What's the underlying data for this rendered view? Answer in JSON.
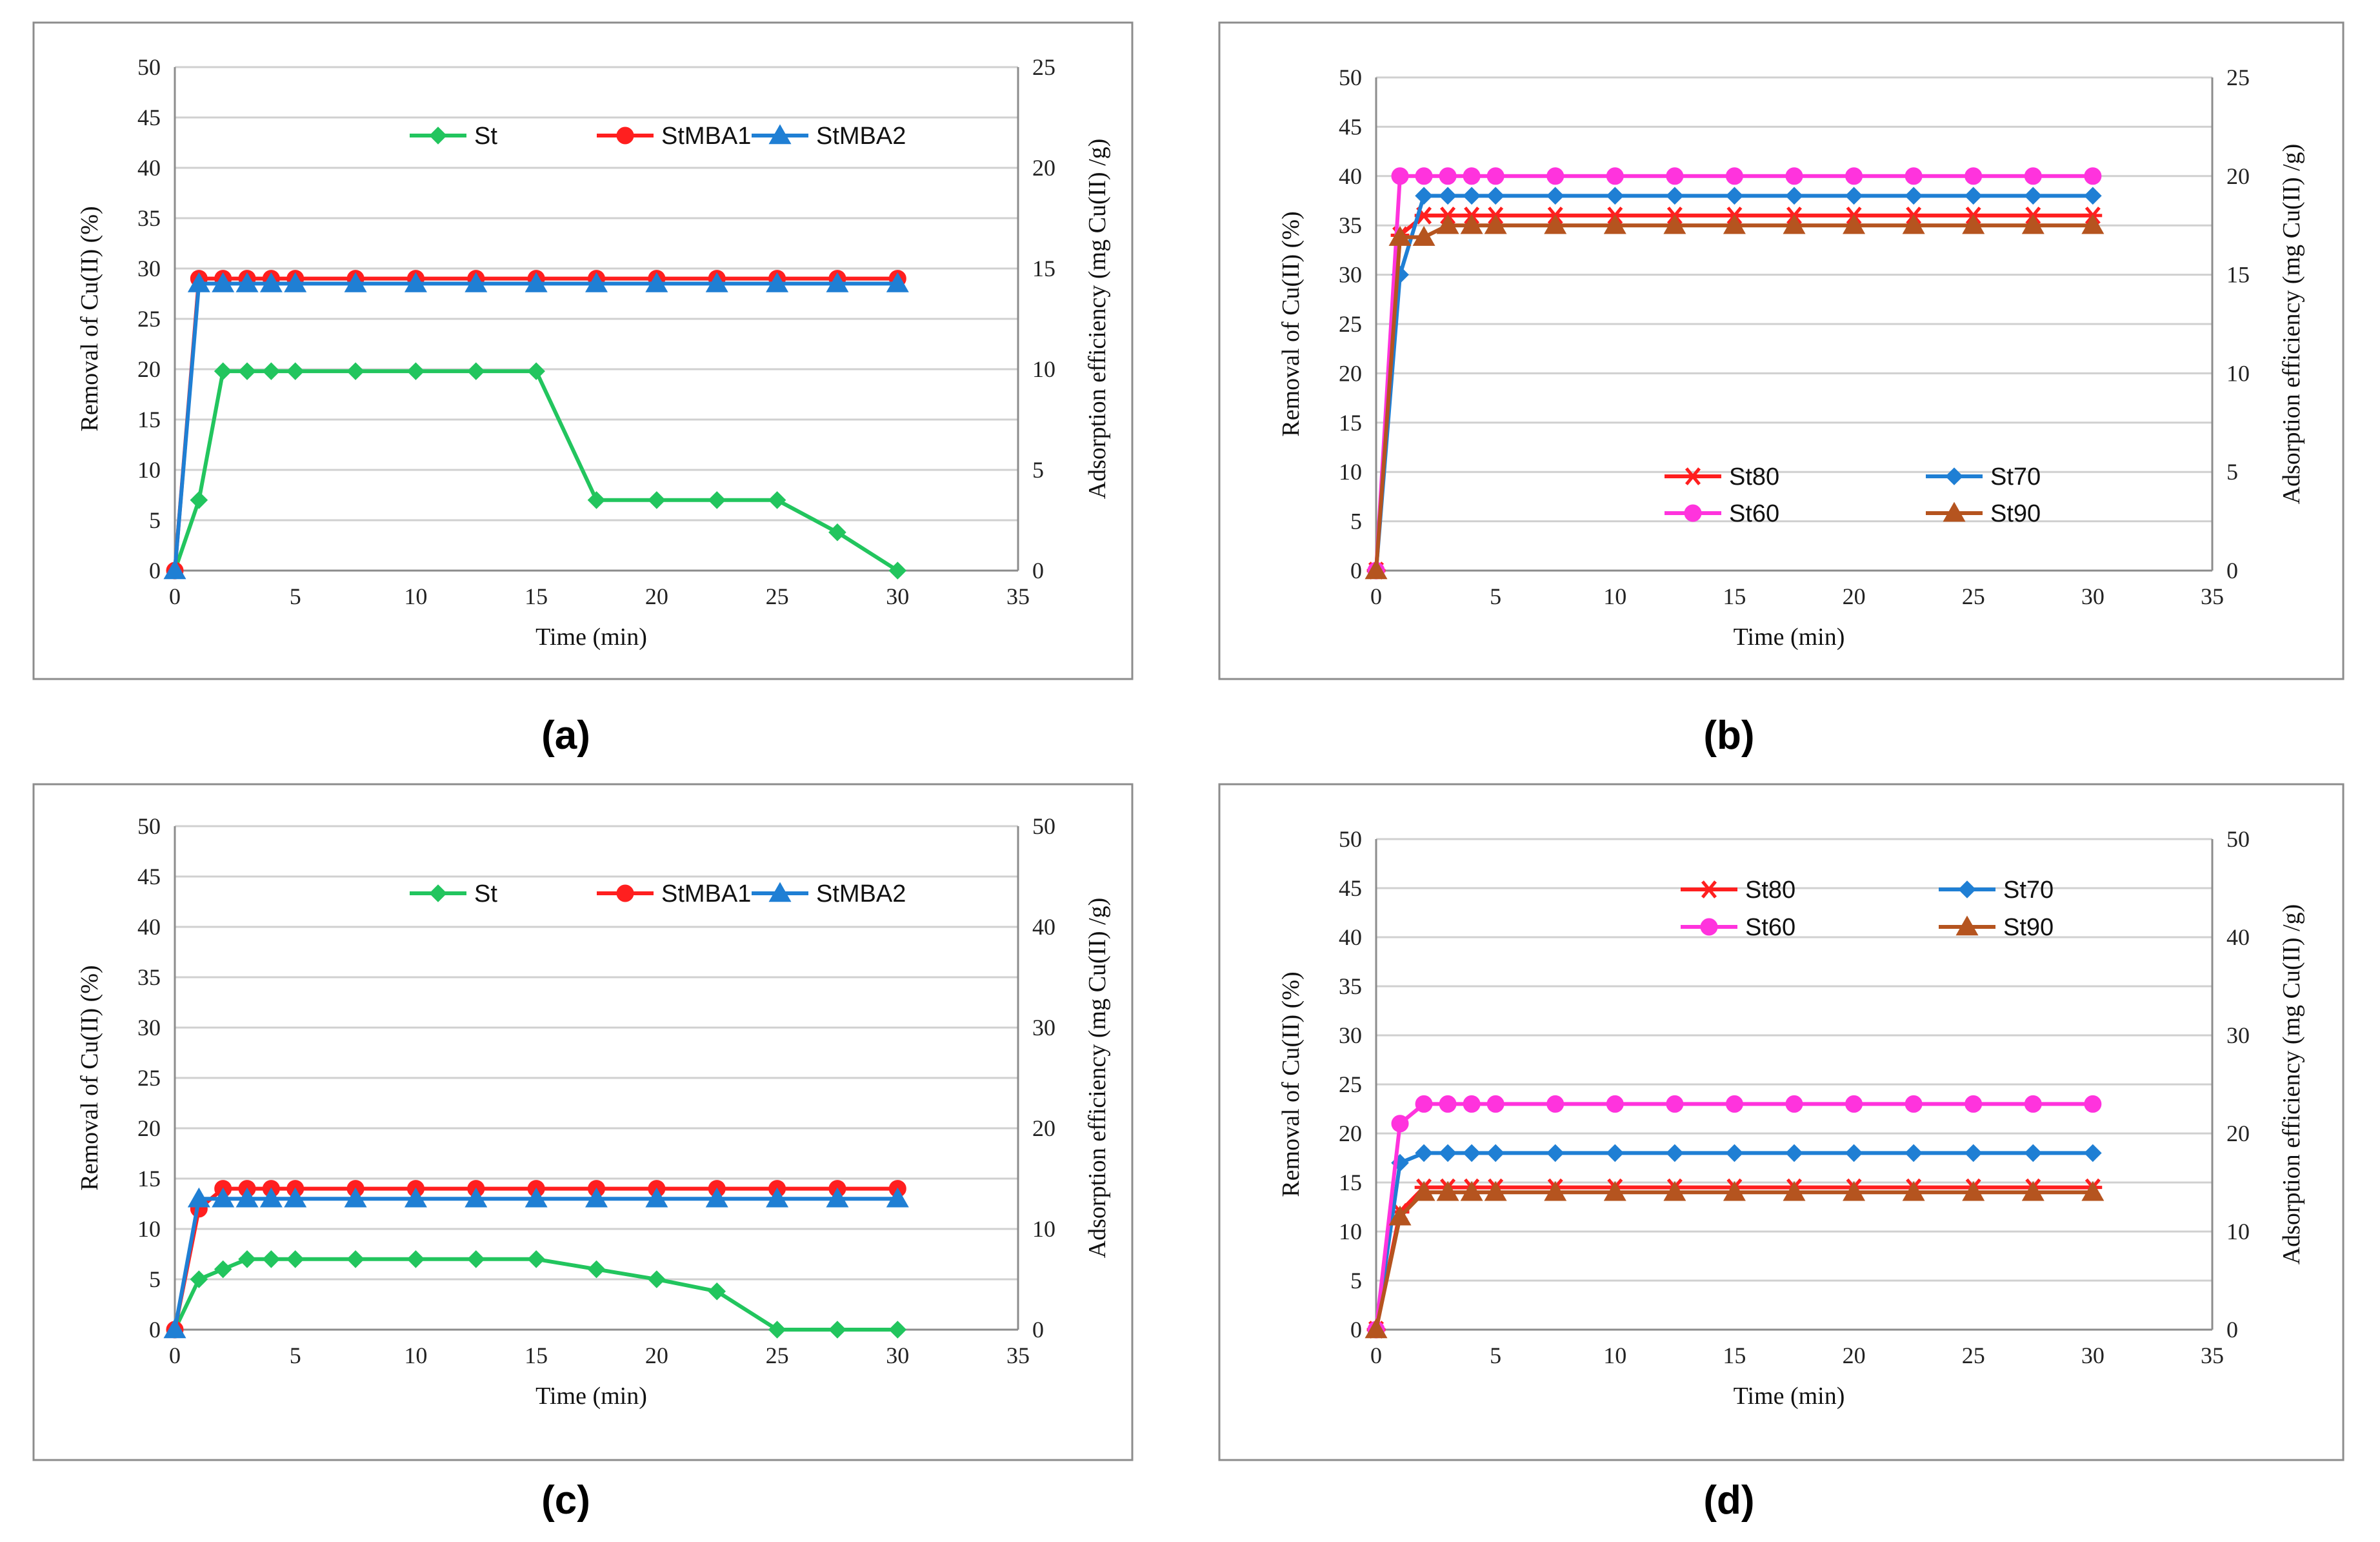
{
  "chart_data": [
    {
      "type": "line",
      "panel": "(a)",
      "xlabel": "Time (min)",
      "ylabel": "Removal of Cu(II) (%)",
      "y2label": "Adsorption efficiency  (mg Cu(II) /g)",
      "xlim": [
        0,
        35
      ],
      "ylim": [
        0,
        50
      ],
      "y2lim": [
        0,
        25
      ],
      "xticks": [
        0,
        5,
        10,
        15,
        20,
        25,
        30,
        35
      ],
      "yticks": [
        0,
        5,
        10,
        15,
        20,
        25,
        30,
        35,
        40,
        45,
        50
      ],
      "y2ticks": [
        0,
        5,
        10,
        15,
        20,
        25
      ],
      "legend_position": "top-right",
      "x": [
        0,
        1,
        2,
        3,
        4,
        5,
        7.5,
        10,
        12.5,
        15,
        17.5,
        20,
        22.5,
        25,
        27.5,
        30
      ],
      "series": [
        {
          "name": "St",
          "color": "#22c55e",
          "marker": "diamond",
          "values": [
            0,
            7,
            19.8,
            19.8,
            19.8,
            19.8,
            19.8,
            19.8,
            19.8,
            19.8,
            7,
            7,
            7,
            7,
            3.8,
            0
          ]
        },
        {
          "name": "StMBA1",
          "color": "#ff1f1f",
          "marker": "circle",
          "values": [
            0,
            29,
            29,
            29,
            29,
            29,
            29,
            29,
            29,
            29,
            29,
            29,
            29,
            29,
            29,
            29
          ]
        },
        {
          "name": "StMBA2",
          "color": "#1f7fd4",
          "marker": "triangle",
          "values": [
            0,
            28.5,
            28.5,
            28.5,
            28.5,
            28.5,
            28.5,
            28.5,
            28.5,
            28.5,
            28.5,
            28.5,
            28.5,
            28.5,
            28.5,
            28.5
          ]
        }
      ]
    },
    {
      "type": "line",
      "panel": "(b)",
      "xlabel": "Time (min)",
      "ylabel": "Removal of Cu(II) (%)",
      "y2label": "Adsorption efficiency  (mg Cu(II) /g)",
      "xlim": [
        0,
        35
      ],
      "ylim": [
        0,
        50
      ],
      "y2lim": [
        0,
        25
      ],
      "xticks": [
        0,
        5,
        10,
        15,
        20,
        25,
        30,
        35
      ],
      "yticks": [
        0,
        5,
        10,
        15,
        20,
        25,
        30,
        35,
        40,
        45,
        50
      ],
      "y2ticks": [
        0,
        5,
        10,
        15,
        20,
        25
      ],
      "legend_position": "bottom-right",
      "x": [
        0,
        1,
        2,
        3,
        4,
        5,
        7.5,
        10,
        12.5,
        15,
        17.5,
        20,
        22.5,
        25,
        27.5,
        30
      ],
      "series": [
        {
          "name": "St80",
          "color": "#ff1f1f",
          "marker": "asterisk",
          "values": [
            0,
            34,
            36,
            36,
            36,
            36,
            36,
            36,
            36,
            36,
            36,
            36,
            36,
            36,
            36,
            36
          ]
        },
        {
          "name": "St70",
          "color": "#1f7fd4",
          "marker": "diamond",
          "values": [
            0,
            30,
            38,
            38,
            38,
            38,
            38,
            38,
            38,
            38,
            38,
            38,
            38,
            38,
            38,
            38
          ]
        },
        {
          "name": "St60",
          "color": "#ff33dd",
          "marker": "circle",
          "values": [
            0,
            40,
            40,
            40,
            40,
            40,
            40,
            40,
            40,
            40,
            40,
            40,
            40,
            40,
            40,
            40
          ]
        },
        {
          "name": "St90",
          "color": "#b5541f",
          "marker": "triangle",
          "values": [
            0,
            33.8,
            33.8,
            35,
            35,
            35,
            35,
            35,
            35,
            35,
            35,
            35,
            35,
            35,
            35,
            35
          ]
        }
      ]
    },
    {
      "type": "line",
      "panel": "(c)",
      "xlabel": "Time (min)",
      "ylabel": "Removal of Cu(II) (%)",
      "y2label": "Adsorption efficiency  (mg Cu(II) /g)",
      "xlim": [
        0,
        35
      ],
      "ylim": [
        0,
        50
      ],
      "y2lim": [
        0,
        50
      ],
      "xticks": [
        0,
        5,
        10,
        15,
        20,
        25,
        30,
        35
      ],
      "yticks": [
        0,
        5,
        10,
        15,
        20,
        25,
        30,
        35,
        40,
        45,
        50
      ],
      "y2ticks": [
        0,
        10,
        20,
        30,
        40,
        50
      ],
      "legend_position": "top-right",
      "x": [
        0,
        1,
        2,
        3,
        4,
        5,
        7.5,
        10,
        12.5,
        15,
        17.5,
        20,
        22.5,
        25,
        27.5,
        30
      ],
      "series": [
        {
          "name": "St",
          "color": "#22c55e",
          "marker": "diamond",
          "values": [
            0,
            5,
            6,
            7,
            7,
            7,
            7,
            7,
            7,
            7,
            6,
            5,
            3.8,
            0,
            0,
            0
          ]
        },
        {
          "name": "StMBA1",
          "color": "#ff1f1f",
          "marker": "circle",
          "values": [
            0,
            12,
            14,
            14,
            14,
            14,
            14,
            14,
            14,
            14,
            14,
            14,
            14,
            14,
            14,
            14
          ]
        },
        {
          "name": "StMBA2",
          "color": "#1f7fd4",
          "marker": "triangle",
          "values": [
            0,
            13,
            13,
            13,
            13,
            13,
            13,
            13,
            13,
            13,
            13,
            13,
            13,
            13,
            13,
            13
          ]
        }
      ]
    },
    {
      "type": "line",
      "panel": "(d)",
      "xlabel": "Time (min)",
      "ylabel": "Removal of Cu(II) (%)",
      "y2label": "Adsorption efficiency  (mg Cu(II) /g)",
      "xlim": [
        0,
        35
      ],
      "ylim": [
        0,
        50
      ],
      "y2lim": [
        0,
        50
      ],
      "xticks": [
        0,
        5,
        10,
        15,
        20,
        25,
        30,
        35
      ],
      "yticks": [
        0,
        5,
        10,
        15,
        20,
        25,
        30,
        35,
        40,
        45,
        50
      ],
      "y2ticks": [
        0,
        10,
        20,
        30,
        40,
        50
      ],
      "legend_position": "top-right",
      "x": [
        0,
        1,
        2,
        3,
        4,
        5,
        7.5,
        10,
        12.5,
        15,
        17.5,
        20,
        22.5,
        25,
        27.5,
        30
      ],
      "series": [
        {
          "name": "St80",
          "color": "#ff1f1f",
          "marker": "asterisk",
          "values": [
            0,
            12,
            14.5,
            14.5,
            14.5,
            14.5,
            14.5,
            14.5,
            14.5,
            14.5,
            14.5,
            14.5,
            14.5,
            14.5,
            14.5,
            14.5
          ]
        },
        {
          "name": "St70",
          "color": "#1f7fd4",
          "marker": "diamond",
          "values": [
            0,
            17,
            18,
            18,
            18,
            18,
            18,
            18,
            18,
            18,
            18,
            18,
            18,
            18,
            18,
            18
          ]
        },
        {
          "name": "St60",
          "color": "#ff33dd",
          "marker": "circle",
          "values": [
            0,
            21,
            23,
            23,
            23,
            23,
            23,
            23,
            23,
            23,
            23,
            23,
            23,
            23,
            23,
            23
          ]
        },
        {
          "name": "St90",
          "color": "#b5541f",
          "marker": "triangle",
          "values": [
            0,
            11.5,
            14,
            14,
            14,
            14,
            14,
            14,
            14,
            14,
            14,
            14,
            14,
            14,
            14,
            14
          ]
        }
      ]
    }
  ]
}
